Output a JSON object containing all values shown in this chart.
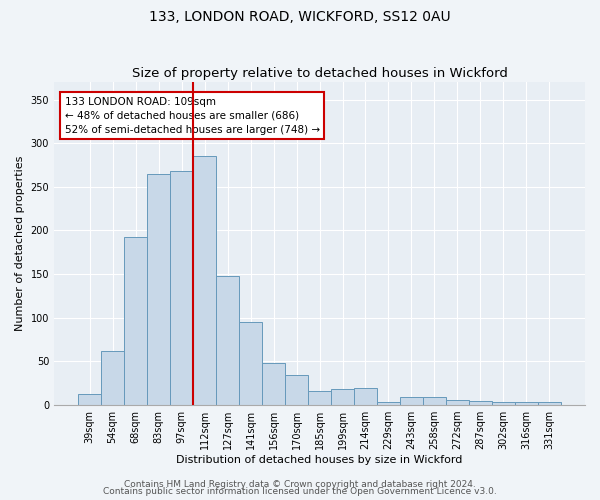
{
  "title1": "133, LONDON ROAD, WICKFORD, SS12 0AU",
  "title2": "Size of property relative to detached houses in Wickford",
  "xlabel": "Distribution of detached houses by size in Wickford",
  "ylabel": "Number of detached properties",
  "bar_labels": [
    "39sqm",
    "54sqm",
    "68sqm",
    "83sqm",
    "97sqm",
    "112sqm",
    "127sqm",
    "141sqm",
    "156sqm",
    "170sqm",
    "185sqm",
    "199sqm",
    "214sqm",
    "229sqm",
    "243sqm",
    "258sqm",
    "272sqm",
    "287sqm",
    "302sqm",
    "316sqm",
    "331sqm"
  ],
  "bar_heights": [
    13,
    62,
    192,
    265,
    268,
    285,
    148,
    95,
    48,
    35,
    16,
    18,
    19,
    4,
    9,
    9,
    6,
    5,
    3,
    3,
    3
  ],
  "bar_color": "#c8d8e8",
  "bar_edge_color": "#6699bb",
  "annotation_box_text": "133 LONDON ROAD: 109sqm\n← 48% of detached houses are smaller (686)\n52% of semi-detached houses are larger (748) →",
  "annotation_box_color": "#ffffff",
  "annotation_box_edge_color": "#cc0000",
  "vline_index": 4.5,
  "vline_color": "#cc0000",
  "footer1": "Contains HM Land Registry data © Crown copyright and database right 2024.",
  "footer2": "Contains public sector information licensed under the Open Government Licence v3.0.",
  "ylim": [
    0,
    370
  ],
  "yticks": [
    0,
    50,
    100,
    150,
    200,
    250,
    300,
    350
  ],
  "bg_color": "#e8eef4",
  "fig_bg_color": "#f0f4f8",
  "title_fontsize": 10,
  "subtitle_fontsize": 9.5,
  "axis_label_fontsize": 8,
  "tick_fontsize": 7,
  "annotation_fontsize": 7.5,
  "footer_fontsize": 6.5
}
